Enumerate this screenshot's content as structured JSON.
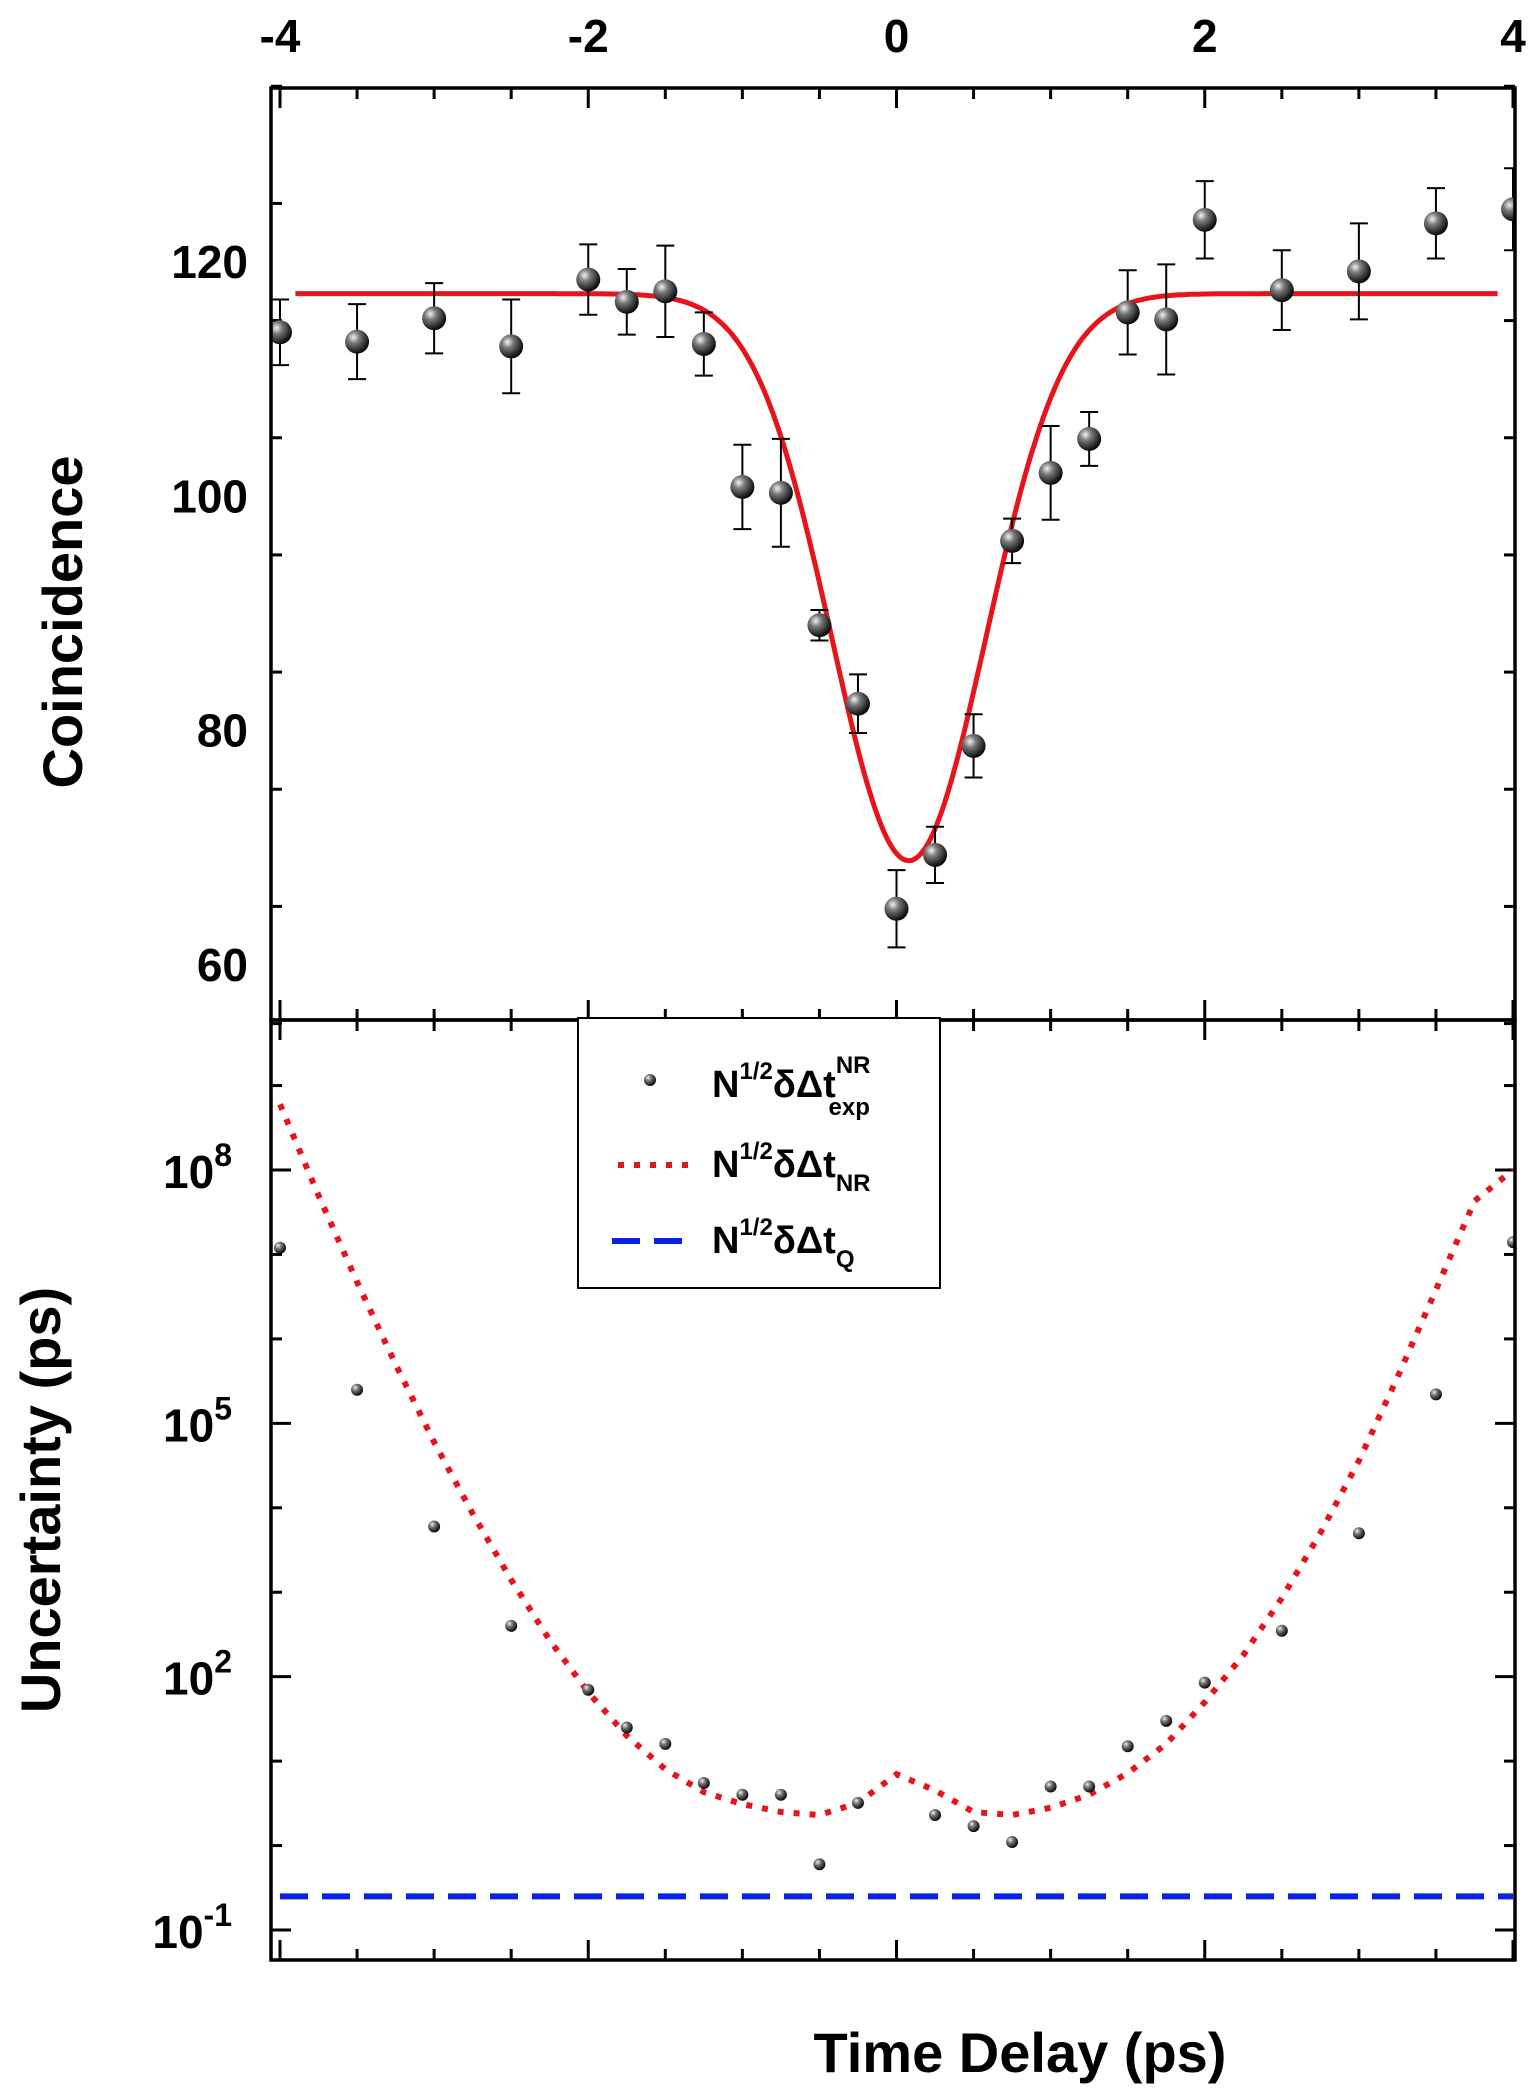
{
  "chart_data": [
    {
      "type": "scatter",
      "panel": "top",
      "title": "",
      "xlabel": "",
      "ylabel": "Coincidence",
      "xlim": [
        -4,
        4
      ],
      "ylim": [
        55,
        135
      ],
      "x_tick_labels": [
        "-4",
        "-2",
        "0",
        "2",
        "4"
      ],
      "y_tick_labels": [
        "60",
        "80",
        "100",
        "120"
      ],
      "x_tick_values": [
        -4,
        -2,
        0,
        2,
        4
      ],
      "y_tick_values": [
        60,
        80,
        100,
        120
      ],
      "grid": false,
      "series": [
        {
          "kind": "points-with-error",
          "color": "#000000",
          "points": [
            {
              "x": -4.0,
              "y": 114.0,
              "err": 2.8
            },
            {
              "x": -3.5,
              "y": 113.2,
              "err": 3.2
            },
            {
              "x": -3.0,
              "y": 115.2,
              "err": 3.0
            },
            {
              "x": -2.5,
              "y": 112.8,
              "err": 4.0
            },
            {
              "x": -2.0,
              "y": 118.5,
              "err": 3.0
            },
            {
              "x": -1.75,
              "y": 116.6,
              "err": 2.8
            },
            {
              "x": -1.5,
              "y": 117.5,
              "err": 3.9
            },
            {
              "x": -1.25,
              "y": 113.0,
              "err": 2.7
            },
            {
              "x": -1.0,
              "y": 100.8,
              "err": 3.6
            },
            {
              "x": -0.75,
              "y": 100.3,
              "err": 4.6
            },
            {
              "x": -0.5,
              "y": 89.0,
              "err": 1.3
            },
            {
              "x": -0.25,
              "y": 82.3,
              "err": 2.5
            },
            {
              "x": 0.0,
              "y": 64.8,
              "err": 3.3
            },
            {
              "x": 0.25,
              "y": 69.4,
              "err": 2.4
            },
            {
              "x": 0.5,
              "y": 78.7,
              "err": 2.7
            },
            {
              "x": 0.75,
              "y": 96.2,
              "err": 1.9
            },
            {
              "x": 1.0,
              "y": 102.0,
              "err": 4.0
            },
            {
              "x": 1.25,
              "y": 104.9,
              "err": 2.3
            },
            {
              "x": 1.5,
              "y": 115.7,
              "err": 3.6
            },
            {
              "x": 1.75,
              "y": 115.1,
              "err": 4.7
            },
            {
              "x": 2.0,
              "y": 123.6,
              "err": 3.3
            },
            {
              "x": 2.5,
              "y": 117.6,
              "err": 3.4
            },
            {
              "x": 3.0,
              "y": 119.2,
              "err": 4.1
            },
            {
              "x": 3.5,
              "y": 123.3,
              "err": 3.0
            },
            {
              "x": 4.0,
              "y": 124.5,
              "err": 3.5
            }
          ]
        },
        {
          "kind": "fit-curve",
          "color": "#e8141b",
          "model": "gaussian-dip",
          "baseline": 117.3,
          "depth": 48.4,
          "center": 0.08,
          "sigma": 0.5
        }
      ]
    },
    {
      "type": "scatter",
      "panel": "bottom",
      "title": "",
      "xlabel": "Time Delay (ps)",
      "ylabel": "Uncertainty (ps)",
      "xlim": [
        -4,
        4
      ],
      "yscale": "log",
      "ylim_log10": [
        -1.2,
        9.5
      ],
      "y_tick_labels": [
        {
          "base": "10",
          "exp": "-1",
          "value": -1
        },
        {
          "base": "10",
          "exp": "2",
          "value": 2
        },
        {
          "base": "10",
          "exp": "5",
          "value": 5
        },
        {
          "base": "10",
          "exp": "8",
          "value": 8
        }
      ],
      "grid": false,
      "legend": {
        "position": "top-left",
        "entries": [
          {
            "key": "exp",
            "main": "N",
            "sup1": "1/2",
            "mid": "δΔt",
            "sup2": "NR",
            "sub": "exp",
            "style": "dot",
            "color": "#000000"
          },
          {
            "key": "nr",
            "main": "N",
            "sup1": "1/2",
            "mid": "δΔt",
            "sup2": "",
            "sub": "NR",
            "style": "dotted-line",
            "color": "#e8141b"
          },
          {
            "key": "q",
            "main": "N",
            "sup1": "1/2",
            "mid": "δΔt",
            "sup2": "",
            "sub": "Q",
            "style": "dashed-line",
            "color": "#0a20e6"
          }
        ]
      },
      "series": [
        {
          "name": "N^1/2 δΔt^NR_exp",
          "kind": "points",
          "color": "#000000",
          "x": [
            -4.0,
            -3.5,
            -3.0,
            -2.5,
            -2.0,
            -1.75,
            -1.5,
            -1.25,
            -1.0,
            -0.75,
            -0.5,
            -0.25,
            0.25,
            0.5,
            0.75,
            1.0,
            1.25,
            1.5,
            1.75,
            2.0,
            2.5,
            3.0,
            3.5,
            4.0
          ],
          "y": [
            12000000.0,
            250000.0,
            6000.0,
            400.0,
            70,
            25,
            16,
            5.5,
            4.0,
            4.0,
            0.6,
            3.2,
            2.3,
            1.7,
            1.1,
            5.0,
            5.0,
            15,
            30,
            85,
            350,
            5000.0,
            220000.0,
            14000000.0
          ],
          "marker": "small-dot"
        },
        {
          "name": "N^1/2 δΔt_NR",
          "kind": "line",
          "style": "dotted",
          "color": "#e8141b",
          "x": [
            -4.0,
            -3.75,
            -3.5,
            -3.25,
            -3.0,
            -2.75,
            -2.5,
            -2.25,
            -2.0,
            -1.75,
            -1.5,
            -1.25,
            -1.0,
            -0.75,
            -0.5,
            -0.25,
            0.0,
            0.25,
            0.5,
            0.75,
            1.0,
            1.25,
            1.5,
            1.75,
            2.0,
            2.25,
            2.5,
            2.75,
            3.0,
            3.25,
            3.5,
            3.75,
            4.0
          ],
          "y": [
            600000000.0,
            50000000.0,
            4700000.0,
            500000.0,
            60000.0,
            8500.0,
            1400.0,
            270,
            65,
            20,
            8,
            4.3,
            3.1,
            2.5,
            2.3,
            3.2,
            7.0,
            4.5,
            2.5,
            2.3,
            2.8,
            4.0,
            7.2,
            16,
            50,
            180,
            850,
            5000.0,
            36000.0,
            350000.0,
            3800000.0,
            43000000.0,
            100000000.0
          ]
        },
        {
          "name": "N^1/2 δΔt_Q",
          "kind": "line",
          "style": "dashed",
          "color": "#0a20e6",
          "x": [
            -4.0,
            4.0
          ],
          "y": [
            0.25,
            0.25
          ]
        }
      ]
    }
  ]
}
